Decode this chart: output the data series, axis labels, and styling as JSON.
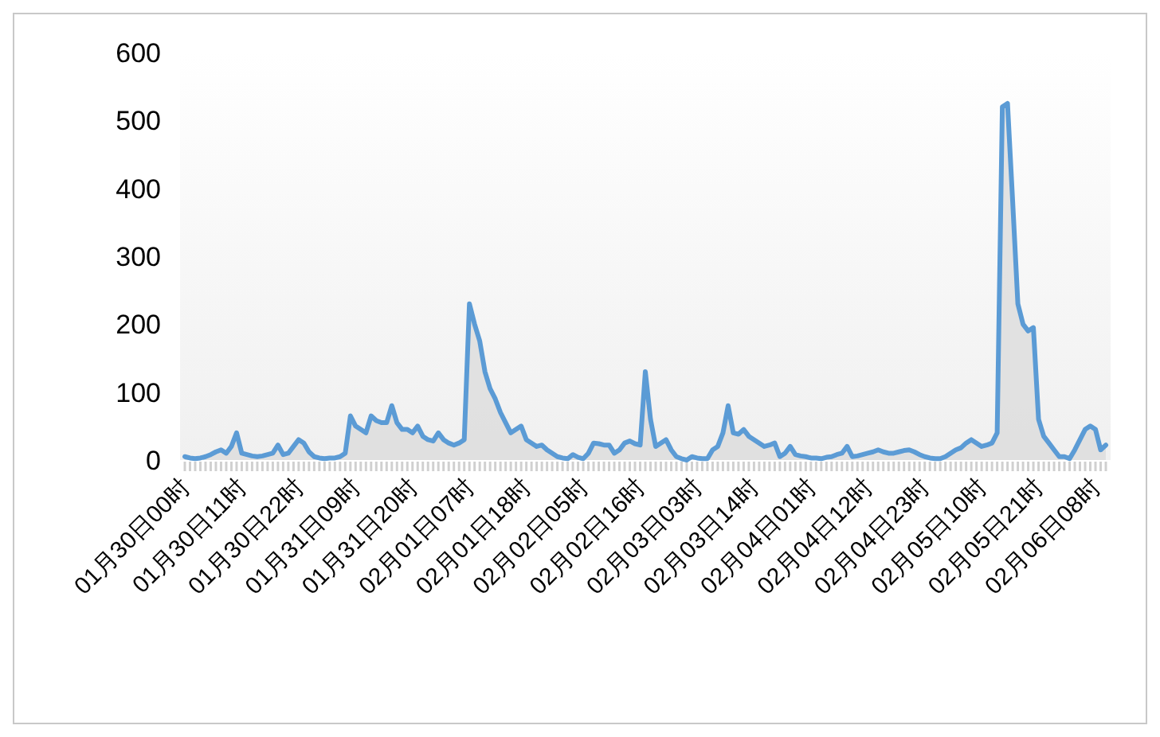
{
  "chart_data": {
    "type": "area",
    "categories": [
      "01月30日00时",
      null,
      null,
      null,
      null,
      null,
      null,
      null,
      null,
      null,
      null,
      "01月30日11时",
      null,
      null,
      null,
      null,
      null,
      null,
      null,
      null,
      null,
      null,
      "01月30日22时",
      null,
      null,
      null,
      null,
      null,
      null,
      null,
      null,
      null,
      null,
      "01月31日09时",
      null,
      null,
      null,
      null,
      null,
      null,
      null,
      null,
      null,
      null,
      "01月31日20时",
      null,
      null,
      null,
      null,
      null,
      null,
      null,
      null,
      null,
      null,
      "02月01日07时",
      null,
      null,
      null,
      null,
      null,
      null,
      null,
      null,
      null,
      null,
      "02月01日18时",
      null,
      null,
      null,
      null,
      null,
      null,
      null,
      null,
      null,
      null,
      "02月02日05时",
      null,
      null,
      null,
      null,
      null,
      null,
      null,
      null,
      null,
      null,
      "02月02日16时",
      null,
      null,
      null,
      null,
      null,
      null,
      null,
      null,
      null,
      null,
      "02月03日03时",
      null,
      null,
      null,
      null,
      null,
      null,
      null,
      null,
      null,
      null,
      "02月03日14时",
      null,
      null,
      null,
      null,
      null,
      null,
      null,
      null,
      null,
      null,
      "02月04日01时",
      null,
      null,
      null,
      null,
      null,
      null,
      null,
      null,
      null,
      null,
      "02月04日12时",
      null,
      null,
      null,
      null,
      null,
      null,
      null,
      null,
      null,
      null,
      "02月04日23时",
      null,
      null,
      null,
      null,
      null,
      null,
      null,
      null,
      null,
      null,
      "02月05日10时",
      null,
      null,
      null,
      null,
      null,
      null,
      null,
      null,
      null,
      null,
      "02月05日21时",
      null,
      null,
      null,
      null,
      null,
      null,
      null,
      null,
      null,
      null,
      "02月06日08时",
      null,
      null
    ],
    "series": [
      {
        "color": "#5b9bd5",
        "values": [
          5,
          3,
          2,
          3,
          5,
          8,
          12,
          15,
          10,
          20,
          40,
          10,
          8,
          6,
          5,
          6,
          8,
          10,
          22,
          8,
          10,
          20,
          30,
          25,
          12,
          5,
          3,
          2,
          3,
          3,
          5,
          10,
          65,
          50,
          45,
          40,
          65,
          58,
          55,
          55,
          80,
          55,
          45,
          45,
          40,
          50,
          35,
          30,
          28,
          40,
          30,
          25,
          22,
          25,
          30,
          230,
          200,
          175,
          130,
          105,
          90,
          70,
          55,
          40,
          45,
          50,
          30,
          25,
          20,
          22,
          15,
          10,
          5,
          3,
          2,
          8,
          4,
          2,
          10,
          25,
          24,
          22,
          22,
          10,
          15,
          25,
          28,
          24,
          22,
          130,
          60,
          20,
          25,
          30,
          15,
          5,
          2,
          0,
          5,
          3,
          2,
          2,
          15,
          20,
          40,
          80,
          40,
          38,
          45,
          35,
          30,
          25,
          20,
          22,
          25,
          5,
          10,
          20,
          8,
          6,
          5,
          3,
          3,
          2,
          4,
          5,
          8,
          10,
          20,
          5,
          6,
          8,
          10,
          12,
          15,
          12,
          10,
          10,
          12,
          14,
          15,
          12,
          8,
          5,
          3,
          2,
          2,
          5,
          10,
          15,
          18,
          25,
          30,
          25,
          20,
          22,
          25,
          40,
          520,
          525,
          380,
          230,
          200,
          190,
          195,
          60,
          35,
          25,
          15,
          5,
          5,
          2,
          15,
          30,
          45,
          50,
          45,
          15,
          22
        ]
      }
    ],
    "ylim": [
      0,
      600
    ],
    "yticks": [
      0,
      100,
      200,
      300,
      400,
      500,
      600
    ]
  }
}
